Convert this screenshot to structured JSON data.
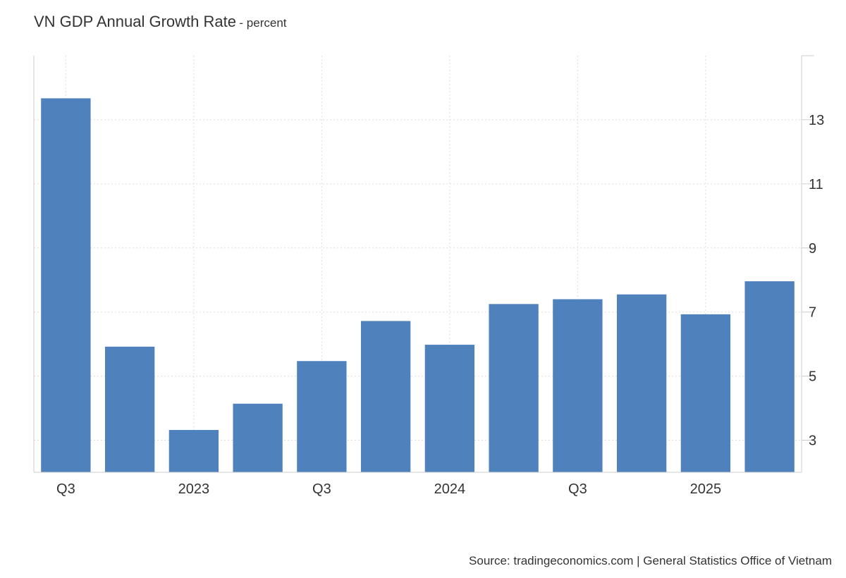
{
  "header": {
    "title": "VN GDP Annual Growth Rate",
    "subtitle": "- percent"
  },
  "footer": {
    "source": "Source: tradingeconomics.com | General Statistics Office of Vietnam"
  },
  "colors": {
    "bar": "#4f81bd",
    "grid": "#dddddd",
    "axis": "#cccccc"
  },
  "chart_data": {
    "type": "bar",
    "categories": [
      "Q3",
      "",
      "2023",
      "",
      "Q3",
      "",
      "2024",
      "",
      "Q3",
      "",
      "2025",
      ""
    ],
    "values": [
      13.67,
      5.92,
      3.32,
      4.14,
      5.47,
      6.72,
      5.98,
      7.25,
      7.4,
      7.55,
      6.93,
      7.96
    ],
    "ylim": [
      2,
      15
    ],
    "yticks": [
      3,
      5,
      7,
      9,
      11,
      13
    ],
    "grid": true,
    "y_axis_side": "right"
  }
}
